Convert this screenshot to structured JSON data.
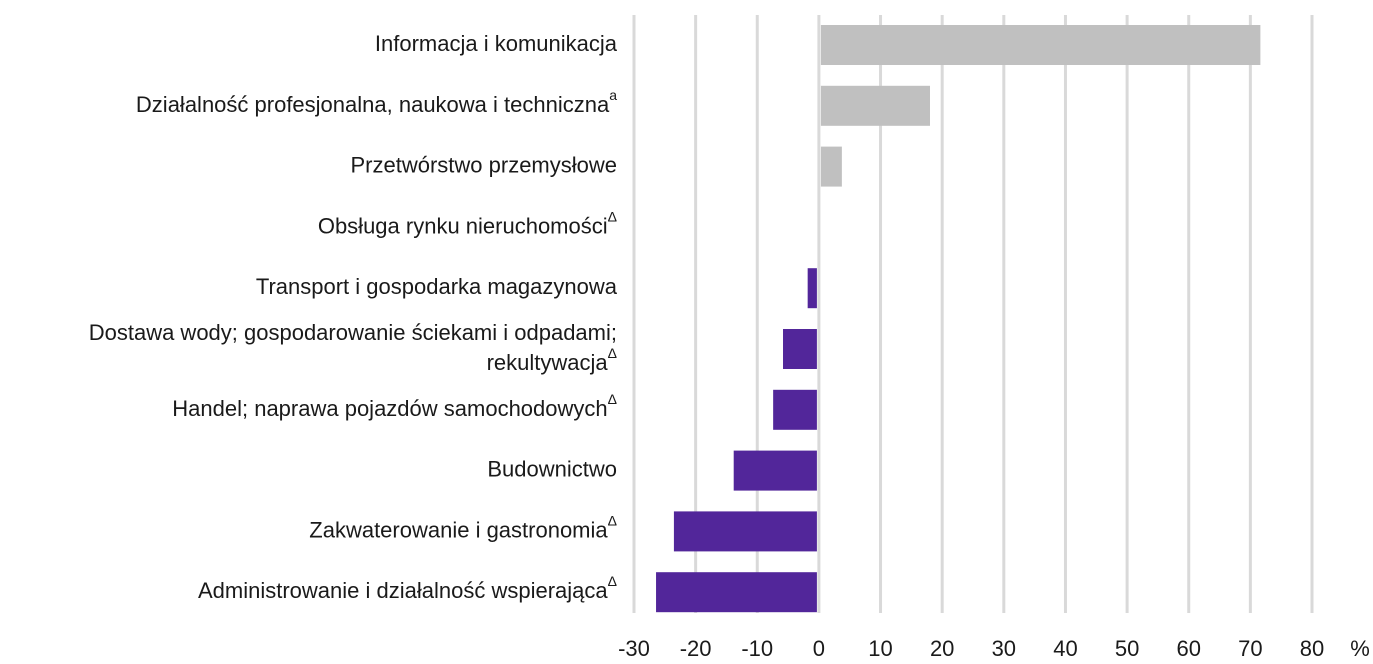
{
  "chart_data": {
    "type": "hbar",
    "categories": [
      {
        "lines": [
          "Informacja i komunikacja"
        ]
      },
      {
        "lines": [
          "Działalność profesjonalna, naukowa i techniczna"
        ],
        "note": "a"
      },
      {
        "lines": [
          "Przetwórstwo przemysłowe"
        ]
      },
      {
        "lines": [
          "Obsługa rynku nieruchomości"
        ],
        "note": "Δ"
      },
      {
        "lines": [
          "Transport i gospodarka magazynowa"
        ]
      },
      {
        "lines": [
          "Dostawa wody; gospodarowanie ściekami i odpadami;",
          "rekultywacja"
        ],
        "note": "Δ"
      },
      {
        "lines": [
          "Handel; naprawa pojazdów samochodowych"
        ],
        "note": "Δ"
      },
      {
        "lines": [
          "Budownictwo"
        ]
      },
      {
        "lines": [
          "Zakwaterowanie i gastronomia"
        ],
        "note": "Δ"
      },
      {
        "lines": [
          "Administrowanie i działalność wspierająca"
        ],
        "note": "Δ"
      }
    ],
    "values": [
      71.3,
      17.7,
      3.4,
      0,
      -1.5,
      -5.5,
      -7.1,
      -13.5,
      -23.2,
      -26.1
    ],
    "positive_color": "#c0c0c0",
    "negative_color": "#52269a",
    "xlim": [
      -30,
      80
    ],
    "xticks": [
      -30,
      -20,
      -10,
      0,
      10,
      20,
      30,
      40,
      50,
      60,
      70,
      80
    ],
    "x_unit": "%",
    "grid": true
  }
}
